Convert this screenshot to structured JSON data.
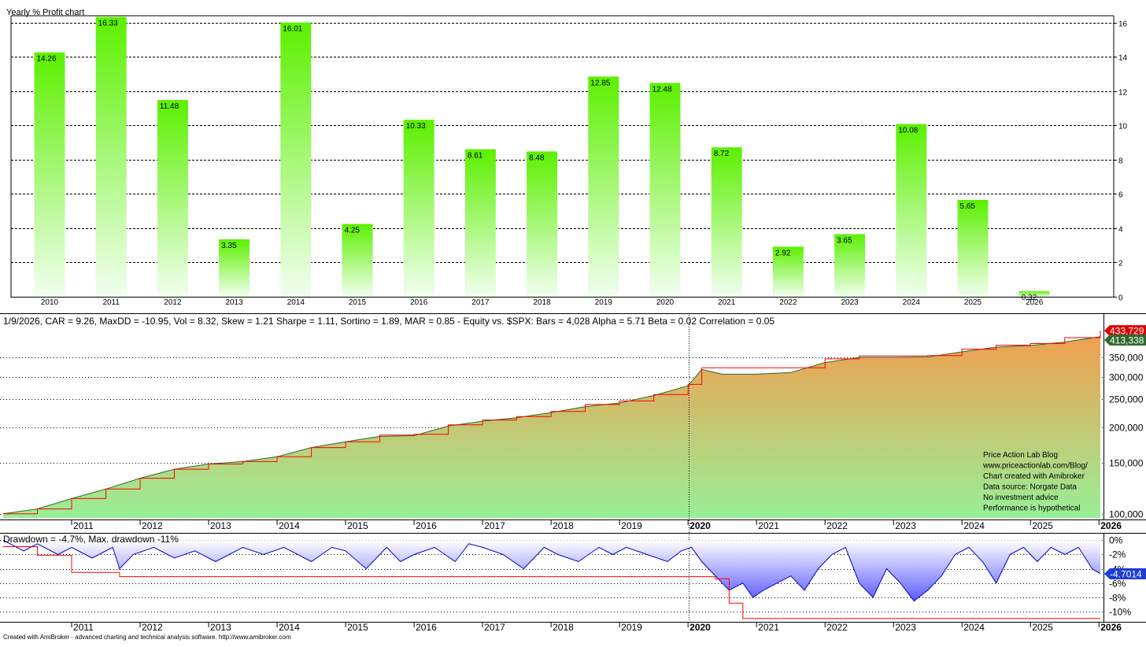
{
  "header_title": "Yearly % Profit chart",
  "stats_line": "1/9/2026, CAR = 9.26, MaxDD = -10.95, Vol = 8.32, Skew = 1.21 Sharpe = 1.11, Sortino = 1.89, MAR = 0.85 - Equity vs. $SPX:  Bars = 4,028 Alpha = 5.71 Beta = 0.02 Correlation = 0.05",
  "drawdown_line": "Drawdown = -4.7%, Max. drawdown -11%",
  "annotation_lines": [
    "Price Action Lab Blog",
    "www.priceactionlab.com/Blog/",
    "Chart created with Amibroker",
    "Data source: Norgate Data",
    "No investment advice",
    "Performance is hypothetical"
  ],
  "footer": "Created with AmiBroker - advanced charting and technical analysis software. http://www.amibroker.com",
  "colors": {
    "bar_top": "#5cf000",
    "bar_bottom": "#f2fff0",
    "area_top": "#f0a050",
    "area_bottom": "#98f098",
    "dd_fill_top": "#ffffff",
    "dd_fill_bottom": "#5c5cff",
    "equity_line": "#2a6a2a",
    "high_water_line": "#ff0000",
    "drawdown_line": "#0000c8",
    "max_dd_line": "#ff0000",
    "badge_red": "#e00000",
    "badge_green": "#2e6b2e",
    "badge_blue": "#1e3cd2"
  },
  "chart_data": [
    {
      "type": "bar",
      "title": "Yearly % Profit chart",
      "categories": [
        "2010",
        "2011",
        "2012",
        "2013",
        "2014",
        "2015",
        "2016",
        "2017",
        "2018",
        "2019",
        "2020",
        "2021",
        "2022",
        "2023",
        "2024",
        "2025",
        "2026"
      ],
      "values": [
        14.26,
        16.33,
        11.48,
        3.35,
        16.01,
        4.25,
        10.33,
        8.61,
        8.48,
        12.85,
        12.48,
        8.72,
        2.92,
        3.65,
        10.08,
        5.65,
        0.32
      ],
      "value_labels": [
        "14.26",
        "16.33",
        "11.48",
        "3.35",
        "16.01",
        "4.25",
        "10.33",
        "8.61",
        "8.48",
        "12.85",
        "12.48",
        "8.72",
        "2.92",
        "3.65",
        "10.08",
        "5.65",
        "0.32"
      ],
      "y_ticks": [
        "0",
        "2",
        "4",
        "6",
        "8",
        "10",
        "12",
        "14",
        "16"
      ],
      "ylim": [
        0,
        16.4
      ],
      "grid": true,
      "axis_position": "right"
    },
    {
      "type": "area",
      "title": "Equity vs. $SPX",
      "scale": "log",
      "x_tick_labels": [
        "2011",
        "2012",
        "2013",
        "2014",
        "2015",
        "2016",
        "2017",
        "2018",
        "2019",
        "2020",
        "2021",
        "2022",
        "2023",
        "2024",
        "2025",
        "2026"
      ],
      "y_ticks": [
        "100,000",
        "150,000",
        "200,000",
        "250,000",
        "300,000",
        "350,000"
      ],
      "ylim": [
        98000,
        445000
      ],
      "last_value_labels": [
        "433,729",
        "413,338"
      ],
      "x": [
        2010.0,
        2010.5,
        2011.0,
        2011.5,
        2012.0,
        2012.5,
        2013.0,
        2013.5,
        2014.0,
        2014.5,
        2015.0,
        2015.5,
        2016.0,
        2016.5,
        2017.0,
        2017.5,
        2018.0,
        2018.5,
        2019.0,
        2019.5,
        2020.0,
        2020.2,
        2020.5,
        2021.0,
        2021.5,
        2022.0,
        2022.5,
        2023.0,
        2023.5,
        2024.0,
        2024.5,
        2025.0,
        2025.5,
        2026.02
      ],
      "series": [
        {
          "name": "Equity",
          "values": [
            100000,
            104000,
            113000,
            122000,
            133000,
            143000,
            149000,
            152000,
            158000,
            170000,
            178000,
            186000,
            187000,
            202000,
            210000,
            216000,
            225000,
            236000,
            243000,
            258000,
            279000,
            318000,
            306000,
            306000,
            310000,
            336000,
            350000,
            350000,
            351000,
            366000,
            380000,
            385000,
            396000,
            413338
          ]
        },
        {
          "name": "High",
          "values": [
            100000,
            104000,
            113000,
            122000,
            133000,
            143000,
            149000,
            152000,
            158000,
            170000,
            178000,
            188000,
            189000,
            204000,
            212000,
            218000,
            227000,
            240000,
            247000,
            260000,
            282000,
            322000,
            322000,
            322000,
            322000,
            346000,
            354000,
            354000,
            355000,
            374000,
            386000,
            391000,
            410000,
            433729
          ]
        }
      ]
    },
    {
      "type": "area",
      "title": "Drawdown",
      "x_tick_labels": [
        "2011",
        "2012",
        "2013",
        "2014",
        "2015",
        "2016",
        "2017",
        "2018",
        "2019",
        "2020",
        "2021",
        "2022",
        "2023",
        "2024",
        "2025",
        "2026"
      ],
      "y_ticks": [
        "0%",
        "-2%",
        "-4%",
        "-6%",
        "-8%",
        "-10%"
      ],
      "ylim": [
        -11.3,
        0.8
      ],
      "last_value_label": "-4.7014",
      "x": [
        2010.0,
        2010.3,
        2010.5,
        2010.8,
        2011.0,
        2011.3,
        2011.6,
        2011.7,
        2011.9,
        2012.2,
        2012.5,
        2012.8,
        2013.1,
        2013.5,
        2013.8,
        2014.1,
        2014.5,
        2014.8,
        2015.0,
        2015.3,
        2015.6,
        2015.8,
        2016.0,
        2016.3,
        2016.6,
        2016.8,
        2017.0,
        2017.3,
        2017.6,
        2017.9,
        2018.1,
        2018.4,
        2018.7,
        2018.9,
        2019.1,
        2019.4,
        2019.7,
        2019.9,
        2020.05,
        2020.2,
        2020.4,
        2020.6,
        2020.8,
        2020.95,
        2021.1,
        2021.3,
        2021.5,
        2021.7,
        2021.9,
        2022.1,
        2022.3,
        2022.5,
        2022.7,
        2022.9,
        2023.1,
        2023.3,
        2023.5,
        2023.7,
        2023.9,
        2024.1,
        2024.3,
        2024.5,
        2024.7,
        2024.9,
        2025.1,
        2025.3,
        2025.5,
        2025.7,
        2025.9,
        2026.02
      ],
      "series": [
        {
          "name": "Drawdown",
          "values": [
            0,
            -1.5,
            -0.5,
            -2,
            -1,
            -2.5,
            -1,
            -4,
            -2,
            -1,
            -2.5,
            -1.5,
            -3,
            -1,
            -2,
            -1,
            -3,
            -1,
            -1.5,
            -4,
            -1,
            -3,
            -2,
            -1,
            -3,
            -0.5,
            -1,
            -2,
            -4,
            -1,
            -2,
            -3,
            -1,
            -2,
            -1,
            -2,
            -3,
            -1.5,
            -1,
            -3,
            -5,
            -7,
            -6,
            -8,
            -7,
            -6,
            -5,
            -7,
            -4,
            -2,
            -1,
            -6,
            -8,
            -4,
            -6,
            -8.5,
            -7,
            -5,
            -2,
            -1,
            -3,
            -6,
            -2,
            -1,
            -3,
            -1,
            -2,
            -1,
            -4,
            -4.7
          ]
        },
        {
          "name": "Max drawdown",
          "values": [
            -0.9,
            -0.9,
            -2.1,
            -2.1,
            -4.5,
            -4.5,
            -4.5,
            -5.1,
            -5.1,
            -5.1,
            -5.1,
            -5.1,
            -5.1,
            -5.1,
            -5.1,
            -5.1,
            -5.1,
            -5.1,
            -5.1,
            -5.1,
            -5.1,
            -5.1,
            -5.1,
            -5.1,
            -5.1,
            -5.1,
            -5.1,
            -5.1,
            -5.1,
            -5.1,
            -5.1,
            -5.1,
            -5.1,
            -5.1,
            -5.1,
            -5.1,
            -5.1,
            -5.1,
            -5.1,
            -5.1,
            -5.4,
            -8.8,
            -10.95,
            -10.95,
            -10.95,
            -10.95,
            -10.95,
            -10.95,
            -10.95,
            -10.95,
            -10.95,
            -10.95,
            -10.95,
            -10.95,
            -10.95,
            -10.95,
            -10.95,
            -10.95,
            -10.95,
            -10.95,
            -10.95,
            -10.95,
            -10.95,
            -10.95,
            -10.95,
            -10.95,
            -10.95,
            -10.95,
            -10.95,
            -10.95
          ]
        }
      ]
    }
  ]
}
